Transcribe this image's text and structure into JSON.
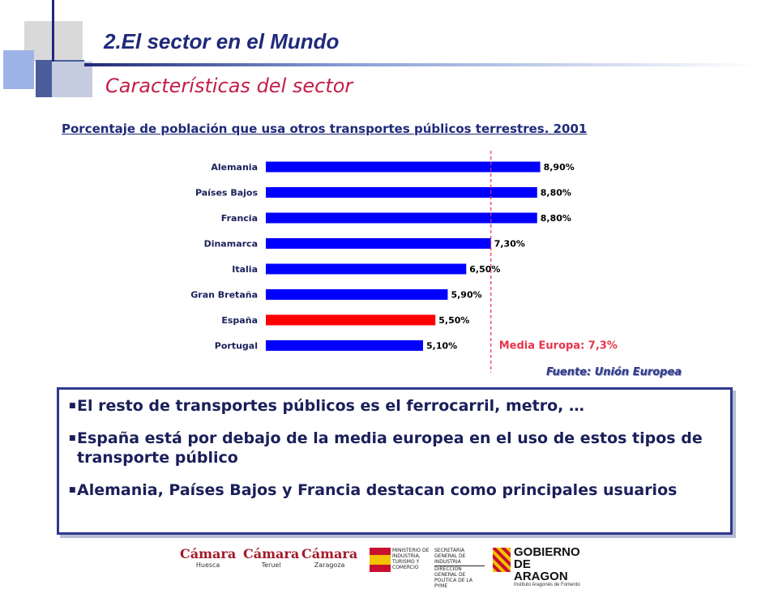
{
  "header": {
    "title": "2.El sector en el Mundo",
    "subtitle": "Características del sector"
  },
  "chart_data": {
    "type": "bar",
    "orientation": "horizontal",
    "title": "Porcentaje de población que usa otros transportes públicos terrestres. 2001",
    "categories": [
      "Alemania",
      "Países Bajos",
      "Francia",
      "Dinamarca",
      "Italia",
      "Gran Bretaña",
      "España",
      "Portugal"
    ],
    "values": [
      8.9,
      8.8,
      8.8,
      7.3,
      6.5,
      5.9,
      5.5,
      5.1
    ],
    "value_labels": [
      "8,90%",
      "8,80%",
      "8,80%",
      "7,30%",
      "6,50%",
      "5,90%",
      "5,50%",
      "5,10%"
    ],
    "bar_colors": [
      "#0000ff",
      "#0000ff",
      "#0000ff",
      "#0000ff",
      "#0000ff",
      "#0000ff",
      "#ff0000",
      "#0000ff"
    ],
    "reference_line": {
      "value": 7.3,
      "label": "Media Europa: 7,3%",
      "color": "#e8334a"
    },
    "xlim": [
      0,
      9.2
    ],
    "grid": false,
    "source": "Fuente: Unión Europea"
  },
  "notes": [
    "El resto de transportes públicos es el ferrocarril, metro, …",
    "España está por debajo de la media europea en el uso de estos tipos de transporte público",
    "Alemania, Países Bajos y Francia destacan como principales usuarios"
  ],
  "logos": {
    "camara1": {
      "name": "Cámara",
      "city": "Huesca"
    },
    "camara2": {
      "name": "Cámara",
      "city": "Teruel"
    },
    "camara3": {
      "name": "Cámara",
      "city": "Zaragoza"
    },
    "ministerio": "MINISTERIO DE INDUSTRIA, TURISMO Y COMERCIO",
    "secretaria": "SECRETARÍA GENERAL DE INDUSTRIA",
    "direccion": "DIRECCIÓN GENERAL DE POLÍTICA DE LA PYME",
    "gobierno_line1": "GOBIERNO",
    "gobierno_line2": "DE ARAGON",
    "gobierno_sub": "Instituto Aragonés de Fomento"
  },
  "colors": {
    "title": "#1f2a7a",
    "subtitle": "#c21e4a",
    "bar": "#0000ff",
    "highlight_bar": "#ff0000",
    "reference": "#e8334a"
  }
}
